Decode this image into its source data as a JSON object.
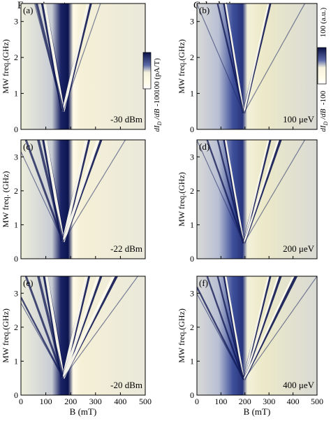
{
  "figure": {
    "columns": {
      "left_title": "Experiment",
      "right_title": "Calculation"
    },
    "colorbars": {
      "experiment": {
        "top": "100 (pA/T)",
        "bottom": "-100",
        "label": "dI_D/dB"
      },
      "calculation": {
        "top": "100 (a.u.)",
        "bottom": "-100",
        "label": "dI_D/dB"
      },
      "colormap": [
        "#0a1145",
        "#3a4a8a",
        "#c8ccd6",
        "#fffbe6",
        "#e8e0a8"
      ]
    },
    "panels": [
      {
        "id": "a",
        "label": "(a)",
        "annotation": "-30 dBm",
        "kind": "experiment",
        "band_center_mT": 170,
        "branch_slopes": [
          -0.038,
          0.028
        ],
        "extra_branches": [
          0.02
        ]
      },
      {
        "id": "b",
        "label": "(b)",
        "annotation": "100 μeV",
        "kind": "calculation",
        "band_center_mT": 195,
        "branch_slopes": [
          -0.038,
          0.028
        ],
        "extra_branches": [
          0.012
        ]
      },
      {
        "id": "c",
        "label": "(c)",
        "annotation": "-22 dBm",
        "kind": "experiment",
        "band_center_mT": 170,
        "branch_slopes": [
          -0.04,
          0.03,
          0.02
        ],
        "extra_branches": [
          0.012
        ]
      },
      {
        "id": "d",
        "label": "(d)",
        "annotation": "200 μeV",
        "kind": "calculation",
        "band_center_mT": 195,
        "branch_slopes": [
          -0.038,
          0.028,
          0.02
        ],
        "extra_branches": [
          0.012
        ]
      },
      {
        "id": "e",
        "label": "(e)",
        "annotation": "-20 dBm",
        "kind": "experiment",
        "band_center_mT": 170,
        "branch_slopes": [
          -0.042,
          0.03,
          0.02,
          0.014
        ],
        "extra_branches": [
          0.01
        ]
      },
      {
        "id": "f",
        "label": "(f)",
        "annotation": "400 μeV",
        "kind": "calculation",
        "band_center_mT": 195,
        "branch_slopes": [
          -0.038,
          0.028,
          0.02,
          0.014
        ],
        "extra_branches": [
          0.01
        ]
      }
    ],
    "axes": {
      "ylabel_a": "MW freq.(GHz)",
      "ylabel_c": "MW freq. (GHz)",
      "ylabel_e": "MW freq.(GHz)",
      "ylabel_b": "MW freq.(GHz)",
      "ylabel_d": "MW freq.(GHz)",
      "ylabel_f": "MW freq.(GHz)",
      "xlabel": "B (mT)",
      "yticks": [
        "0",
        "1",
        "2",
        "3"
      ],
      "xticks": [
        "0",
        "100",
        "200",
        "300",
        "400",
        "500"
      ],
      "ylim": [
        0,
        3.5
      ],
      "xlim": [
        0,
        500
      ]
    }
  }
}
